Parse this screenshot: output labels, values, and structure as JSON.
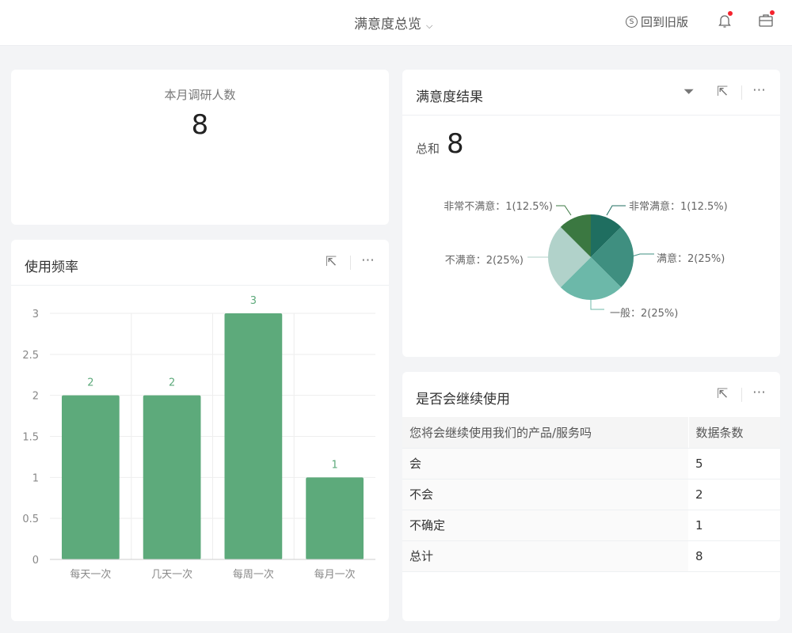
{
  "header": {
    "title": "满意度总览",
    "old_version": "回到旧版"
  },
  "monthly": {
    "label": "本月调研人数",
    "value": "8"
  },
  "satisfaction": {
    "title": "满意度结果",
    "total_label": "总和",
    "total_value": "8",
    "chart_data": {
      "type": "pie",
      "slices": [
        {
          "name": "非常满意",
          "value": 1,
          "pct": "12.5%",
          "label": "非常满意：1(12.5%)",
          "color": "#1f6e60"
        },
        {
          "name": "满意",
          "value": 2,
          "pct": "25%",
          "label": "满意：2(25%)",
          "color": "#3f8f80"
        },
        {
          "name": "一般",
          "value": 2,
          "pct": "25%",
          "label": "一般：2(25%)",
          "color": "#6cb8a9"
        },
        {
          "name": "不满意",
          "value": 2,
          "pct": "25%",
          "label": "不满意：2(25%)",
          "color": "#b1d2ca"
        },
        {
          "name": "非常不满意",
          "value": 1,
          "pct": "12.5%",
          "label": "非常不满意：1(12.5%)",
          "color": "#3b7841"
        }
      ]
    }
  },
  "frequency": {
    "title": "使用频率",
    "chart_data": {
      "type": "bar",
      "categories": [
        "每天一次",
        "几天一次",
        "每周一次",
        "每月一次"
      ],
      "values": [
        2,
        2,
        3,
        1
      ],
      "ylim": [
        0,
        3
      ],
      "yticks": [
        "0",
        "0.5",
        "1",
        "1.5",
        "2",
        "2.5",
        "3"
      ],
      "color": "#5daa7b",
      "grid": true
    }
  },
  "continue": {
    "title": "是否会继续使用",
    "columns": [
      "您将会继续使用我们的产品/服务吗",
      "数据条数"
    ],
    "rows": [
      [
        "会",
        "5"
      ],
      [
        "不会",
        "2"
      ],
      [
        "不确定",
        "1"
      ],
      [
        "总计",
        "8"
      ]
    ]
  }
}
